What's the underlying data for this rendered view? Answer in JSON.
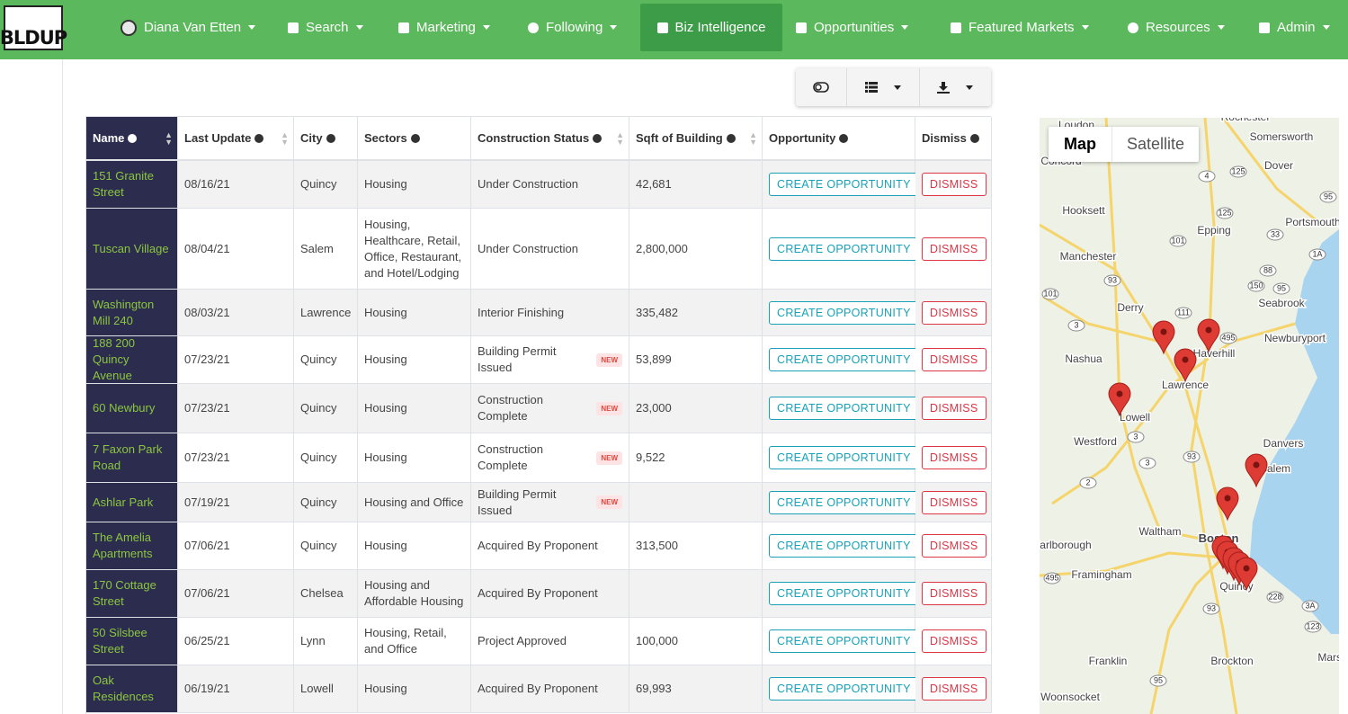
{
  "nav": {
    "logo": "BLDUP",
    "items": [
      "Diana Van Etten",
      "Search",
      "Marketing",
      "Following",
      "Biz Intelligence",
      "Opportunities",
      "Featured Markets",
      "Resources",
      "Admin"
    ]
  },
  "table": {
    "columns": [
      "Name",
      "Last Update",
      "City",
      "Sectors",
      "Construction Status",
      "Sqft of Building",
      "Opportunity",
      "Dismiss"
    ],
    "rows": [
      {
        "name": "151 Granite Street",
        "last_update": "08/16/21",
        "city": "Quincy",
        "sectors": "Housing",
        "status": "Under Construction",
        "sqft": "42,681"
      },
      {
        "name": "Tuscan Village",
        "last_update": "08/04/21",
        "city": "Salem",
        "sectors": "Housing, Healthcare, Retail, Office, Restaurant, and Hotel/Lodging",
        "status": "Under Construction",
        "sqft": "2,800,000"
      },
      {
        "name": "Washington Mill 240",
        "last_update": "08/03/21",
        "city": "Lawrence",
        "sectors": "Housing",
        "status": "Interior Finishing",
        "sqft": "335,482"
      },
      {
        "name": "188 200 Quincy Avenue",
        "last_update": "07/23/21",
        "city": "Quincy",
        "sectors": "Housing",
        "status": "Building Permit Issued",
        "badge": "NEW",
        "sqft": "53,899"
      },
      {
        "name": "60 Newbury",
        "last_update": "07/23/21",
        "city": "Quincy",
        "sectors": "Housing",
        "status": "Construction Complete",
        "badge": "NEW",
        "sqft": "23,000"
      },
      {
        "name": "7 Faxon Park Road",
        "last_update": "07/23/21",
        "city": "Quincy",
        "sectors": "Housing",
        "status": "Construction Complete",
        "badge": "NEW",
        "sqft": "9,522"
      },
      {
        "name": "Ashlar Park",
        "last_update": "07/19/21",
        "city": "Quincy",
        "sectors": "Housing and Office",
        "status": "Building Permit Issued",
        "badge": "NEW"
      },
      {
        "name": "The Amelia Apartments",
        "last_update": "07/06/21",
        "city": "Quincy",
        "sectors": "Housing",
        "status": "Acquired By Proponent",
        "sqft": "313,500"
      },
      {
        "name": "170 Cottage Street",
        "last_update": "07/06/21",
        "city": "Chelsea",
        "sectors": "Housing and Affordable Housing",
        "status": "Acquired By Proponent"
      },
      {
        "name": "50 Silsbee Street",
        "last_update": "06/25/21",
        "city": "Lynn",
        "sectors": "Housing, Retail, and Office",
        "status": "Project Approved",
        "sqft": "100,000"
      },
      {
        "name": "Oak Residences",
        "last_update": "06/19/21",
        "city": "Lowell",
        "sectors": "Housing",
        "status": "Acquired By Proponent",
        "sqft": "69,993"
      }
    ],
    "create_label": "CREATE OPPORTUNITY",
    "dismiss_label": "DISMISS"
  },
  "map": {
    "tabs": [
      "Map",
      "Satellite"
    ],
    "places": [
      "Loudon",
      "Rochester",
      "Somersworth",
      "Concord",
      "Dover",
      "Hooksett",
      "Portsmouth",
      "Epping",
      "Manchester",
      "Seabrook",
      "Derry",
      "Newburyport",
      "Nashua",
      "Haverhill",
      "Lawrence",
      "Lowell",
      "Westford",
      "Danvers",
      "Salem",
      "Waltham",
      "Boston",
      "Marlborough",
      "Framingham",
      "Quincy",
      "Franklin",
      "Brockton",
      "Woonsocket",
      "Marsh"
    ],
    "roads": [
      "125",
      "4",
      "95",
      "125",
      "101",
      "33",
      "1A",
      "88",
      "93",
      "150",
      "95",
      "101",
      "111",
      "3",
      "495",
      "3",
      "93",
      "3",
      "2",
      "495",
      "228",
      "3A",
      "93",
      "123",
      "95"
    ]
  }
}
